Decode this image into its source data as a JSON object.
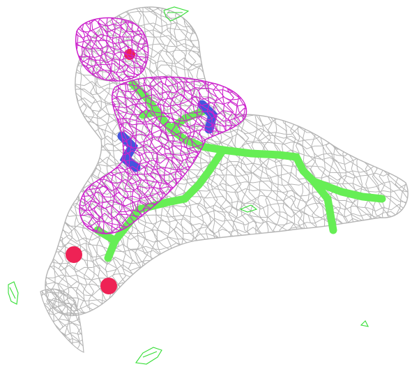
{
  "scene": {
    "background_color": "#ffffff",
    "colors": {
      "grey_mesh": "#b4b4b4",
      "magenta_mesh": "#cc22cc",
      "green_mesh": "#33dd33",
      "carbon": "#66ee55",
      "nitrogen": "#4455dd",
      "oxygen": "#ee2255"
    },
    "objects": [
      "grey-density-mesh",
      "magenta-density-mesh",
      "green-difference-mesh",
      "ligand-stick-model"
    ]
  }
}
